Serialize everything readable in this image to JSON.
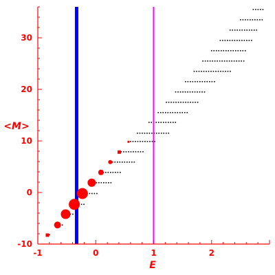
{
  "chart_data": {
    "type": "scatter",
    "xlabel": "E",
    "ylabel": "<M>",
    "xlim": [
      -1.0,
      3.0
    ],
    "ylim": [
      -10,
      36
    ],
    "x_ticks": [
      -1,
      0,
      1,
      2
    ],
    "x_tick_labels": [
      "-1",
      "0",
      "1",
      "2"
    ],
    "y_ticks": [
      -10,
      0,
      10,
      20,
      30
    ],
    "y_tick_labels": [
      "-10",
      "0",
      "10",
      "20",
      "30"
    ],
    "vertical_lines": [
      {
        "x": -0.33,
        "color": "#0000ff"
      },
      {
        "x": 1.0,
        "color": "#ff00ff"
      }
    ],
    "colors": {
      "axes": "#ff0000",
      "markers": "#ff0000",
      "dots": "#000000"
    },
    "grid": false,
    "highlighted_points": [
      {
        "x": -0.84,
        "y": -8.2,
        "size": 2
      },
      {
        "x": -0.66,
        "y": -6.3,
        "size": 5
      },
      {
        "x": -0.52,
        "y": -4.2,
        "size": 7
      },
      {
        "x": -0.37,
        "y": -2.3,
        "size": 8
      },
      {
        "x": -0.23,
        "y": -0.2,
        "size": 8
      },
      {
        "x": -0.07,
        "y": 1.9,
        "size": 6
      },
      {
        "x": 0.09,
        "y": 3.9,
        "size": 4
      },
      {
        "x": 0.25,
        "y": 5.9,
        "size": 3
      },
      {
        "x": 0.4,
        "y": 7.9,
        "size": 2
      },
      {
        "x": 0.56,
        "y": 9.9,
        "size": 1
      }
    ],
    "dot_rows": [
      {
        "y": -8.2,
        "x_start": -0.84,
        "x_end": -0.78
      },
      {
        "y": -6.3,
        "x_start": -0.66,
        "x_end": -0.57
      },
      {
        "y": -4.2,
        "x_start": -0.52,
        "x_end": -0.36
      },
      {
        "y": -2.3,
        "x_start": -0.37,
        "x_end": -0.18
      },
      {
        "y": -0.2,
        "x_start": -0.23,
        "x_end": 0.03
      },
      {
        "y": 1.9,
        "x_start": -0.07,
        "x_end": 0.29
      },
      {
        "y": 3.9,
        "x_start": 0.09,
        "x_end": 0.43
      },
      {
        "y": 5.9,
        "x_start": 0.25,
        "x_end": 0.7
      },
      {
        "y": 7.9,
        "x_start": 0.4,
        "x_end": 0.85
      },
      {
        "y": 9.9,
        "x_start": 0.56,
        "x_end": 1.05
      },
      {
        "y": 11.5,
        "x_start": 0.72,
        "x_end": 1.05
      },
      {
        "y": 11.5,
        "x_start": 1.05,
        "x_end": 1.29
      },
      {
        "y": 13.6,
        "x_start": 0.92,
        "x_end": 1.4
      },
      {
        "y": 15.5,
        "x_start": 1.08,
        "x_end": 1.58
      },
      {
        "y": 17.5,
        "x_start": 1.22,
        "x_end": 1.78
      },
      {
        "y": 19.5,
        "x_start": 1.38,
        "x_end": 1.9
      },
      {
        "y": 21.5,
        "x_start": 1.55,
        "x_end": 2.08
      },
      {
        "y": 23.5,
        "x_start": 1.7,
        "x_end": 2.35
      },
      {
        "y": 25.5,
        "x_start": 1.85,
        "x_end": 2.58
      },
      {
        "y": 27.5,
        "x_start": 2.0,
        "x_end": 2.62
      },
      {
        "y": 29.5,
        "x_start": 2.15,
        "x_end": 2.7
      },
      {
        "y": 31.5,
        "x_start": 2.32,
        "x_end": 2.8
      },
      {
        "y": 33.5,
        "x_start": 2.5,
        "x_end": 2.9
      },
      {
        "y": 35.5,
        "x_start": 2.72,
        "x_end": 2.9
      }
    ]
  }
}
